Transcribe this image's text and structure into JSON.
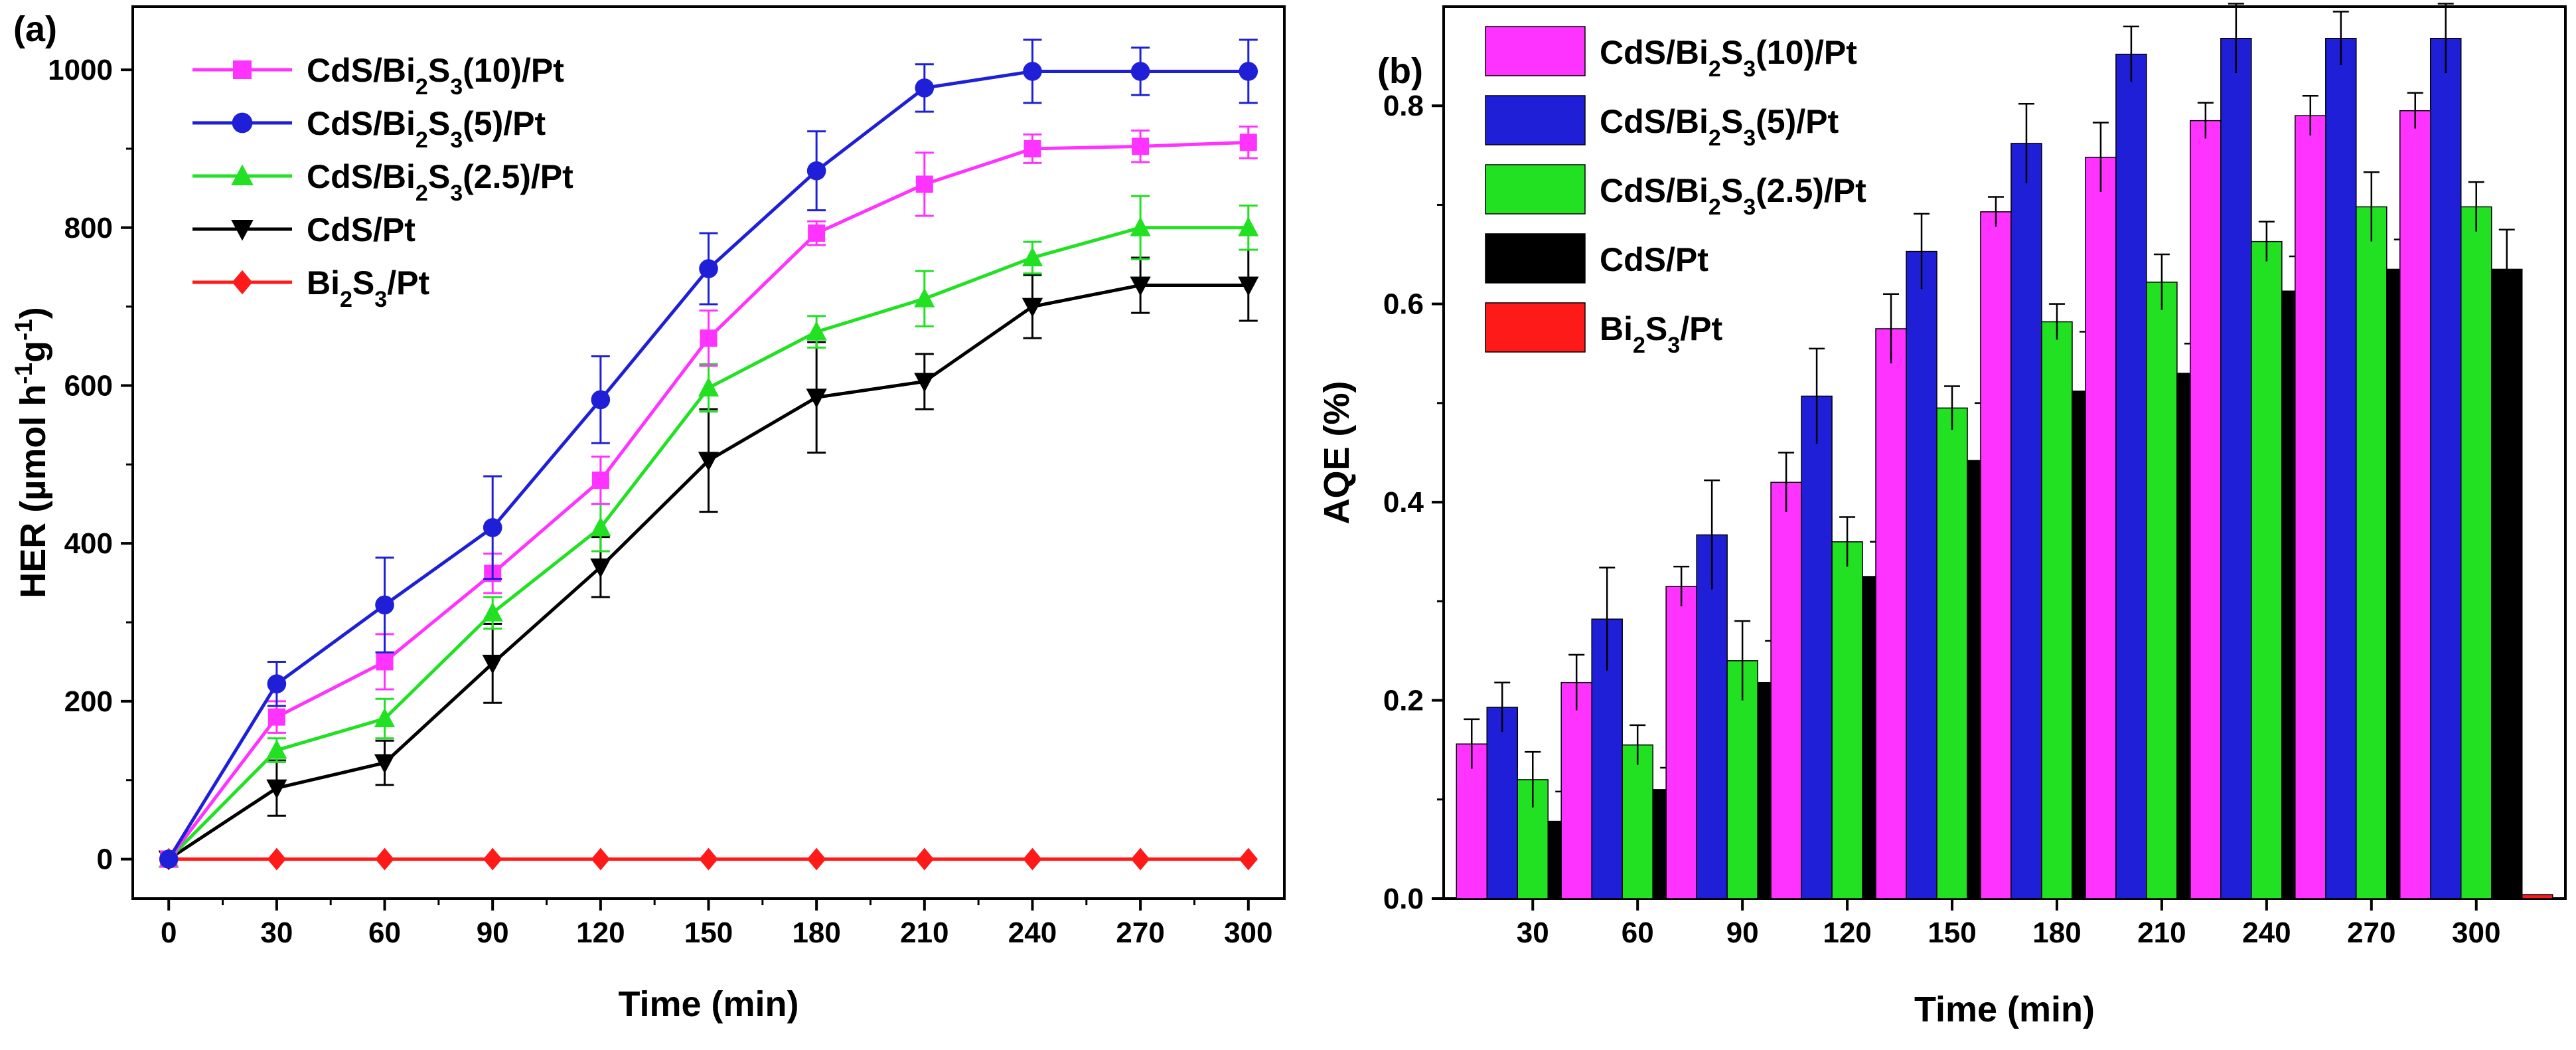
{
  "chart_data": [
    {
      "panel": "(a)",
      "type": "line",
      "xlabel": "Time (min)",
      "ylabel_parts": [
        "HER (µmol h",
        "-1",
        "g",
        "-1",
        ")"
      ],
      "x": [
        0,
        30,
        60,
        90,
        120,
        150,
        180,
        210,
        240,
        270,
        300
      ],
      "xlim": [
        -10,
        310
      ],
      "ylim": [
        -50,
        1080
      ],
      "xticks": [
        "0",
        "30",
        "60",
        "90",
        "120",
        "150",
        "180",
        "210",
        "240",
        "270",
        "300"
      ],
      "yticks": [
        "0",
        "200",
        "400",
        "600",
        "800",
        "1000"
      ],
      "legend_position": "top-left",
      "series": [
        {
          "name_parts": [
            "CdS/Bi",
            "2",
            "S",
            "3",
            "(10)/Pt"
          ],
          "color": "#ff33ff",
          "marker": "square",
          "values": [
            0,
            180,
            250,
            362,
            480,
            660,
            793,
            855,
            900,
            903,
            908
          ],
          "errors": [
            0,
            20,
            35,
            25,
            30,
            35,
            15,
            40,
            18,
            20,
            20
          ]
        },
        {
          "name_parts": [
            "CdS/Bi",
            "2",
            "S",
            "3",
            "(5)/Pt"
          ],
          "color": "#1f1fd8",
          "marker": "circle",
          "values": [
            0,
            222,
            322,
            420,
            582,
            748,
            872,
            977,
            998,
            998,
            998
          ],
          "errors": [
            0,
            28,
            60,
            65,
            55,
            45,
            50,
            30,
            40,
            30,
            40
          ]
        },
        {
          "name_parts": [
            "CdS/Bi",
            "2",
            "S",
            "3",
            "(2.5)/Pt"
          ],
          "color": "#22e022",
          "marker": "triangle-up",
          "values": [
            0,
            138,
            178,
            312,
            420,
            597,
            668,
            710,
            762,
            800,
            800
          ],
          "errors": [
            0,
            15,
            25,
            20,
            30,
            30,
            20,
            35,
            20,
            40,
            28
          ]
        },
        {
          "name_parts": [
            "CdS/Pt"
          ],
          "color": "#000000",
          "marker": "triangle-down",
          "values": [
            0,
            90,
            122,
            248,
            370,
            505,
            585,
            605,
            700,
            727,
            727
          ],
          "errors": [
            0,
            35,
            28,
            50,
            38,
            65,
            70,
            35,
            40,
            35,
            45
          ]
        },
        {
          "name_parts": [
            "Bi",
            "2",
            "S",
            "3",
            "/Pt"
          ],
          "color": "#ff1a1a",
          "marker": "diamond",
          "values": [
            0,
            0,
            0,
            0,
            0,
            0,
            0,
            0,
            0,
            0,
            0
          ],
          "errors": [
            0,
            0,
            0,
            0,
            0,
            0,
            0,
            0,
            0,
            0,
            0
          ]
        }
      ]
    },
    {
      "panel": "(b)",
      "type": "bar",
      "xlabel": "Time (min)",
      "ylabel": "AQE (%)",
      "categories": [
        "30",
        "60",
        "90",
        "120",
        "150",
        "180",
        "210",
        "240",
        "270",
        "300"
      ],
      "ylim": [
        0,
        0.9
      ],
      "yticks": [
        "0.0",
        "0.2",
        "0.4",
        "0.6",
        "0.8"
      ],
      "legend_position": "top-left",
      "series": [
        {
          "name_parts": [
            "CdS/Bi",
            "2",
            "S",
            "3",
            "(10)/Pt"
          ],
          "color": "#ff33ff",
          "values": [
            0.156,
            0.218,
            0.315,
            0.42,
            0.575,
            0.693,
            0.748,
            0.785,
            0.79,
            0.795
          ],
          "errors": [
            0.025,
            0.028,
            0.02,
            0.03,
            0.035,
            0.015,
            0.035,
            0.018,
            0.02,
            0.018
          ]
        },
        {
          "name_parts": [
            "CdS/Bi",
            "2",
            "S",
            "3",
            "(5)/Pt"
          ],
          "color": "#1f1fd8",
          "values": [
            0.193,
            0.282,
            0.367,
            0.507,
            0.653,
            0.762,
            0.852,
            0.868,
            0.868,
            0.868
          ],
          "errors": [
            0.025,
            0.052,
            0.055,
            0.048,
            0.038,
            0.04,
            0.028,
            0.035,
            0.027,
            0.035
          ]
        },
        {
          "name_parts": [
            "CdS/Bi",
            "2",
            "S",
            "3",
            "(2.5)/Pt"
          ],
          "color": "#22e022",
          "values": [
            0.12,
            0.155,
            0.24,
            0.36,
            0.495,
            0.582,
            0.622,
            0.663,
            0.698,
            0.698
          ],
          "errors": [
            0.028,
            0.02,
            0.04,
            0.025,
            0.022,
            0.018,
            0.028,
            0.02,
            0.035,
            0.025
          ]
        },
        {
          "name_parts": [
            "CdS/Pt"
          ],
          "color": "#000000",
          "values": [
            0.078,
            0.11,
            0.218,
            0.325,
            0.442,
            0.512,
            0.53,
            0.613,
            0.635,
            0.635
          ],
          "errors": [
            0.03,
            0.022,
            0.042,
            0.035,
            0.058,
            0.06,
            0.03,
            0.035,
            0.03,
            0.04
          ]
        },
        {
          "name_parts": [
            "Bi",
            "2",
            "S",
            "3",
            "/Pt"
          ],
          "color": "#ff1a1a",
          "values": [
            0.004,
            0.004,
            0.004,
            0.004,
            0.004,
            0.004,
            0.004,
            0.004,
            0.004,
            0.004
          ],
          "errors": [
            0,
            0,
            0,
            0,
            0,
            0,
            0,
            0,
            0,
            0
          ]
        }
      ]
    }
  ]
}
